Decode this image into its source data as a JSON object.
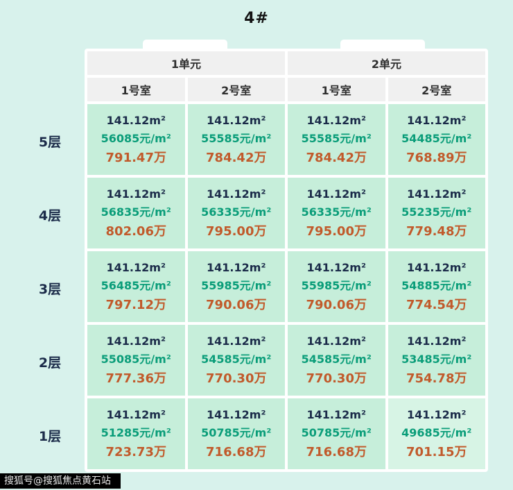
{
  "page": {
    "background": "#d8f2ec"
  },
  "watermark": {
    "text": "搜狐号@搜狐焦点黄石站"
  },
  "colors": {
    "cell_bg": "#c6eeda",
    "header_bg": "#f0f0f0",
    "area_text": "#1b2b49",
    "unit_price_text": "#0a9d79",
    "total_text": "#c15a2b"
  },
  "chart_data": {
    "type": "table",
    "title": "4#",
    "unit_headers": [
      "1单元",
      "2单元"
    ],
    "room_headers": [
      "1号室",
      "2号室",
      "1号室",
      "2号室"
    ],
    "floors": [
      "5层",
      "4层",
      "3层",
      "2层",
      "1层"
    ],
    "rows": [
      {
        "floor": "5层",
        "cells": [
          {
            "area": "141.12m²",
            "price": "56085元/m²",
            "total": "791.47万"
          },
          {
            "area": "141.12m²",
            "price": "55585元/m²",
            "total": "784.42万"
          },
          {
            "area": "141.12m²",
            "price": "55585元/m²",
            "total": "784.42万"
          },
          {
            "area": "141.12m²",
            "price": "54485元/m²",
            "total": "768.89万"
          }
        ]
      },
      {
        "floor": "4层",
        "cells": [
          {
            "area": "141.12m²",
            "price": "56835元/m²",
            "total": "802.06万"
          },
          {
            "area": "141.12m²",
            "price": "56335元/m²",
            "total": "795.00万"
          },
          {
            "area": "141.12m²",
            "price": "56335元/m²",
            "total": "795.00万"
          },
          {
            "area": "141.12m²",
            "price": "55235元/m²",
            "total": "779.48万"
          }
        ]
      },
      {
        "floor": "3层",
        "cells": [
          {
            "area": "141.12m²",
            "price": "56485元/m²",
            "total": "797.12万"
          },
          {
            "area": "141.12m²",
            "price": "55985元/m²",
            "total": "790.06万"
          },
          {
            "area": "141.12m²",
            "price": "55985元/m²",
            "total": "790.06万"
          },
          {
            "area": "141.12m²",
            "price": "54885元/m²",
            "total": "774.54万"
          }
        ]
      },
      {
        "floor": "2层",
        "cells": [
          {
            "area": "141.12m²",
            "price": "55085元/m²",
            "total": "777.36万"
          },
          {
            "area": "141.12m²",
            "price": "54585元/m²",
            "total": "770.30万"
          },
          {
            "area": "141.12m²",
            "price": "54585元/m²",
            "total": "770.30万"
          },
          {
            "area": "141.12m²",
            "price": "53485元/m²",
            "total": "754.78万"
          }
        ]
      },
      {
        "floor": "1层",
        "cells": [
          {
            "area": "141.12m²",
            "price": "51285元/m²",
            "total": "723.73万"
          },
          {
            "area": "141.12m²",
            "price": "50785元/m²",
            "total": "716.68万"
          },
          {
            "area": "141.12m²",
            "price": "50785元/m²",
            "total": "716.68万"
          },
          {
            "area": "141.12m²",
            "price": "49685元/m²",
            "total": "701.15万"
          }
        ]
      }
    ]
  }
}
